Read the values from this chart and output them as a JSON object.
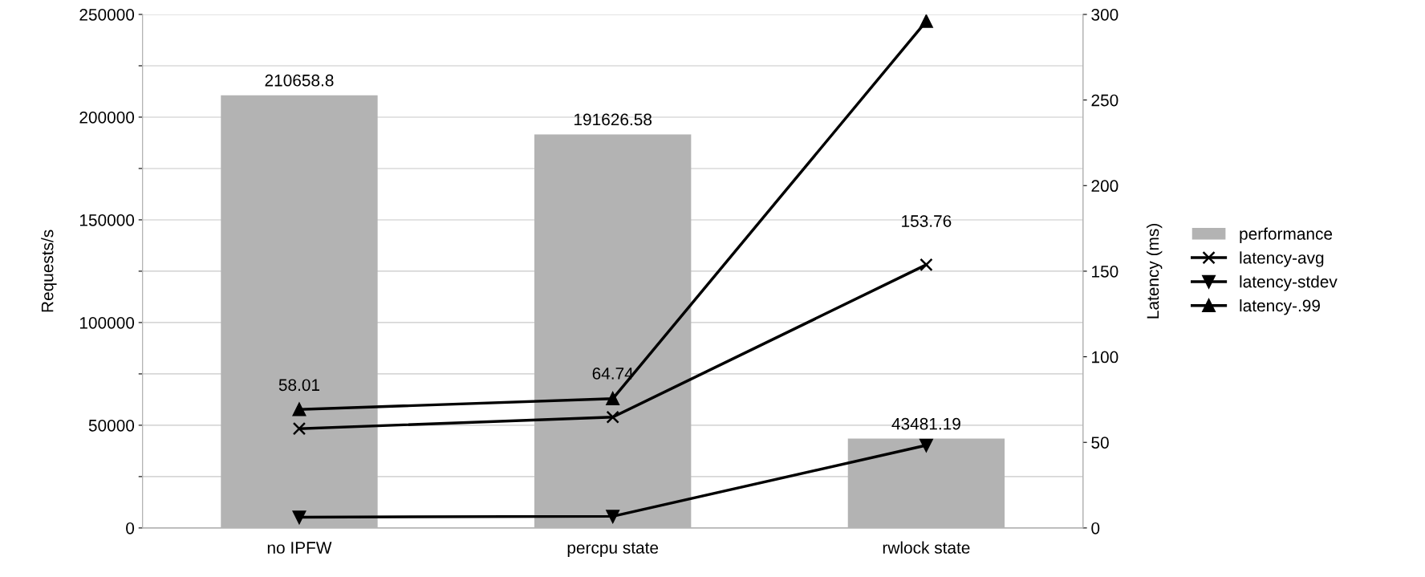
{
  "chart_data": {
    "type": "bar",
    "ylabel": "Requests/s",
    "y2label": "Latency (ms)",
    "categories": [
      "no IPFW",
      "percpu state",
      "rwlock state"
    ],
    "series": [
      {
        "name": "performance",
        "color": "#b3b3b3",
        "values": [
          210658.8,
          191626.58,
          43481.19
        ],
        "value_labels": [
          "210658.8",
          "191626.58",
          "43481.19"
        ]
      },
      {
        "name": "latency-avg",
        "type": "line",
        "axis": "y2",
        "color": "#000000",
        "marker": "cross",
        "values": [
          58.01,
          64.74,
          153.76
        ],
        "value_labels": [
          "58.01",
          "64.74",
          "153.76"
        ]
      },
      {
        "name": "latency-stdev",
        "type": "line",
        "axis": "y2",
        "color": "#000000",
        "marker": "triangle_down",
        "values": [
          6.3,
          6.8,
          48.3
        ]
      },
      {
        "name": "latency-.99",
        "type": "line",
        "axis": "y2",
        "color": "#000000",
        "marker": "triangle",
        "values": [
          69.2,
          75.5,
          296
        ]
      }
    ],
    "ylim": [
      0,
      250000
    ],
    "yticks": [
      0,
      {
        "value": 25000,
        "label": null
      },
      50000,
      {
        "value": 75000,
        "label": null
      },
      100000,
      {
        "value": 125000,
        "label": null
      },
      150000,
      {
        "value": 175000,
        "label": null
      },
      200000,
      {
        "value": 225000,
        "label": null
      },
      250000
    ],
    "y2lim": [
      0,
      300
    ],
    "y2ticks": [
      0,
      50,
      100,
      150,
      200,
      250,
      300
    ],
    "grid": "y",
    "legend": "right",
    "line_style": "solid"
  }
}
